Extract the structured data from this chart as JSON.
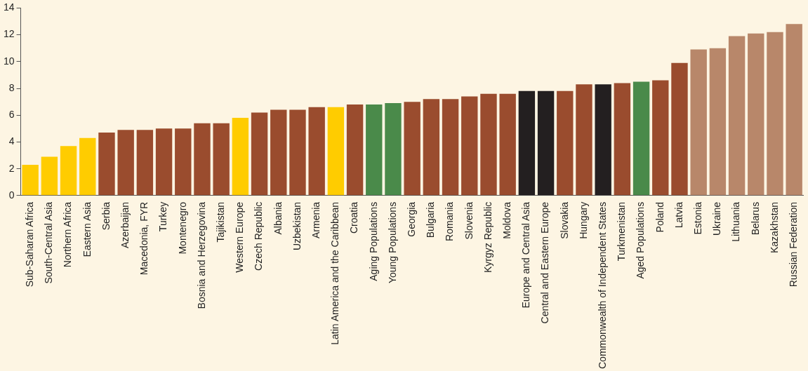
{
  "chart_data": {
    "type": "bar",
    "categories": [
      "Sub-Saharan Africa",
      "South-Central Asia",
      "Northern Africa",
      "Eastern Asia",
      "Serbia",
      "Azerbaijan",
      "Macedonia, FYR",
      "Turkey",
      "Montenegro",
      "Bosnia and Herzegovina",
      "Tajikistan",
      "Western Europe",
      "Czech Republic",
      "Albania",
      "Uzbekistan",
      "Armenia",
      "Latin America and the Caribbean",
      "Croatia",
      "Aging Populations",
      "Young Populations",
      "Georgia",
      "Bulgaria",
      "Romania",
      "Slovenia",
      "Kyrgyz Republic",
      "Moldova",
      "Europe and Central Asia",
      "Central and Eastern Europe",
      "Slovakia",
      "Hungary",
      "Commonwealth of Independent States",
      "Turkmenistan",
      "Aged Populations",
      "Poland",
      "Latvia",
      "Estonia",
      "Ukraine",
      "Lithuania",
      "Belarus",
      "Kazakhstan",
      "Russian Federation"
    ],
    "values": [
      2.3,
      2.9,
      3.7,
      4.3,
      4.7,
      4.9,
      4.9,
      5.0,
      5.0,
      5.4,
      5.4,
      5.8,
      6.2,
      6.4,
      6.4,
      6.6,
      6.6,
      6.8,
      6.8,
      6.9,
      7.0,
      7.2,
      7.2,
      7.4,
      7.6,
      7.6,
      7.8,
      7.8,
      7.8,
      8.3,
      8.3,
      8.4,
      8.5,
      8.6,
      9.9,
      10.9,
      11.0,
      11.9,
      12.1,
      12.2,
      12.8
    ],
    "colors": [
      "#ffcc00",
      "#ffcc00",
      "#ffcc00",
      "#ffcc00",
      "#9a4c2e",
      "#9a4c2e",
      "#9a4c2e",
      "#9a4c2e",
      "#9a4c2e",
      "#9a4c2e",
      "#9a4c2e",
      "#ffcc00",
      "#9a4c2e",
      "#9a4c2e",
      "#9a4c2e",
      "#9a4c2e",
      "#ffcc00",
      "#9a4c2e",
      "#4a8a4a",
      "#4a8a4a",
      "#9a4c2e",
      "#9a4c2e",
      "#9a4c2e",
      "#9a4c2e",
      "#9a4c2e",
      "#9a4c2e",
      "#231f20",
      "#231f20",
      "#9a4c2e",
      "#9a4c2e",
      "#231f20",
      "#9a4c2e",
      "#4a8a4a",
      "#9a4c2e",
      "#9a4c2e",
      "#b8876a",
      "#b8876a",
      "#b8876a",
      "#b8876a",
      "#b8876a",
      "#b8876a"
    ],
    "ylim": [
      0,
      14
    ],
    "yticks": [
      0,
      2,
      4,
      6,
      8,
      10,
      12,
      14
    ],
    "grid": false,
    "legend": false
  }
}
